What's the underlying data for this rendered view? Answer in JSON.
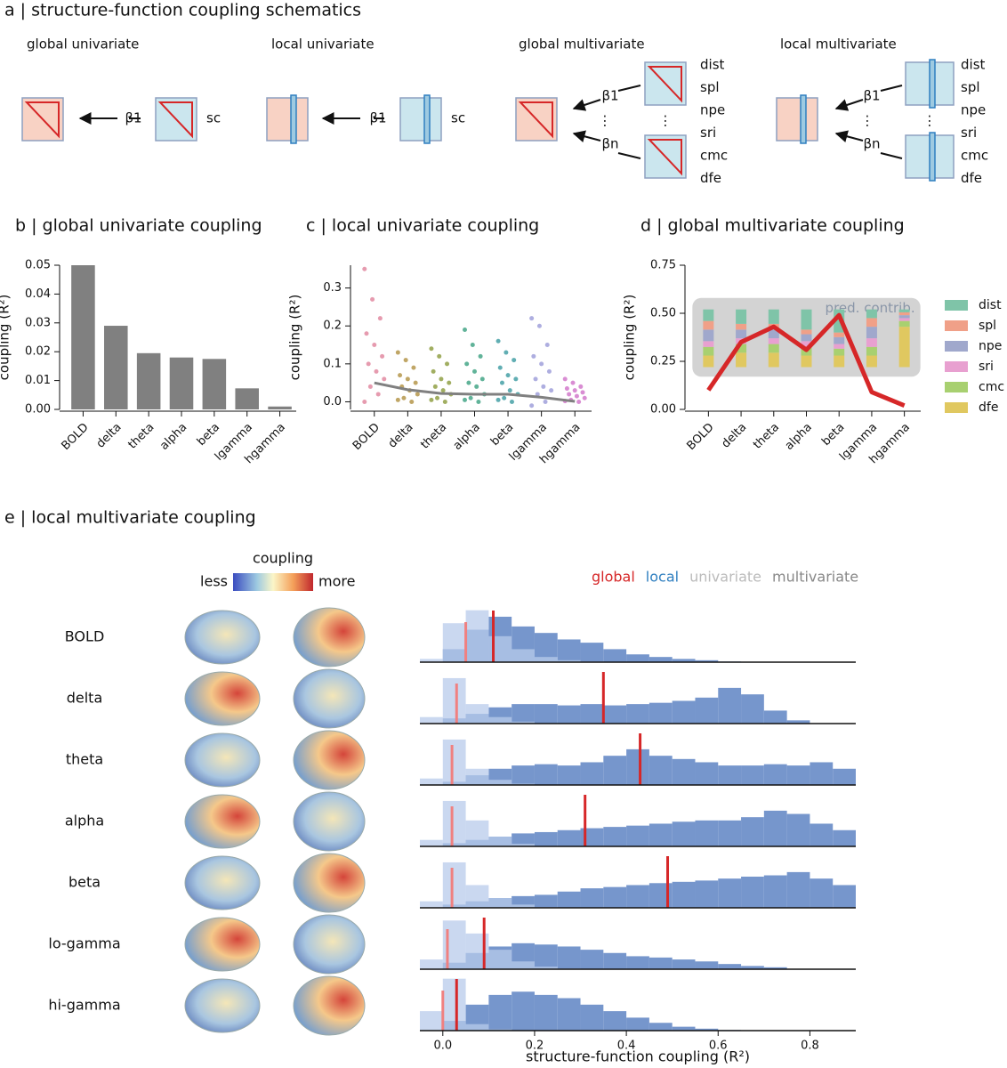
{
  "panel_a": {
    "title": "a | structure-function coupling schematics",
    "schemes": [
      "global univariate",
      "local univariate",
      "global multivariate",
      "local multivariate"
    ],
    "beta1": "β1",
    "betan": "βn",
    "sc": "sc",
    "dots": "⋮",
    "predictors": [
      "dist",
      "spl",
      "npe",
      "sri",
      "cmc",
      "dfe"
    ]
  },
  "chart_data": [
    {
      "type": "bar",
      "title": "b | global univariate coupling",
      "ylabel": "coupling (R²)",
      "categories": [
        "BOLD",
        "delta",
        "theta",
        "alpha",
        "beta",
        "lgamma",
        "hgamma"
      ],
      "values": [
        0.05,
        0.029,
        0.0195,
        0.018,
        0.0175,
        0.0073,
        0.001
      ],
      "color": "#808080",
      "ylim": [
        0,
        0.05
      ],
      "yticks": [
        {
          "value": 0,
          "label": "0.00"
        },
        0.01,
        0.02,
        0.03,
        0.04,
        0.05
      ]
    },
    {
      "type": "strip",
      "title": "c | local univariate coupling",
      "ylabel": "coupling (R²)",
      "categories": [
        "BOLD",
        "delta",
        "theta",
        "alpha",
        "beta",
        "lgamma",
        "hgamma"
      ],
      "colors": [
        "#e0829b",
        "#b09040",
        "#8a9a3a",
        "#3aa080",
        "#3a9aa0",
        "#9a9ad8",
        "#d070c8"
      ],
      "points": [
        [
          0.35,
          0.27,
          0.22,
          0.18,
          0.15,
          0.12,
          0.1,
          0.08,
          0.06,
          0.04,
          0.02,
          0.0
        ],
        [
          0.13,
          0.11,
          0.09,
          0.07,
          0.06,
          0.05,
          0.04,
          0.03,
          0.02,
          0.01,
          0.0,
          0.005
        ],
        [
          0.14,
          0.12,
          0.1,
          0.08,
          0.06,
          0.05,
          0.04,
          0.03,
          0.02,
          0.01,
          0.0,
          0.005
        ],
        [
          0.19,
          0.15,
          0.12,
          0.1,
          0.08,
          0.06,
          0.05,
          0.04,
          0.02,
          0.01,
          0.0,
          0.005
        ],
        [
          0.16,
          0.13,
          0.11,
          0.09,
          0.07,
          0.06,
          0.05,
          0.03,
          0.02,
          0.01,
          0.0,
          0.005
        ],
        [
          0.22,
          0.2,
          0.15,
          0.12,
          0.1,
          0.08,
          0.06,
          0.04,
          0.03,
          0.02,
          0.0,
          -0.01
        ],
        [
          0.06,
          0.05,
          0.04,
          0.035,
          0.03,
          0.025,
          0.02,
          0.015,
          0.01,
          0.005,
          0.0,
          0.002
        ]
      ],
      "trend": [
        0.05,
        0.032,
        0.022,
        0.02,
        0.02,
        0.012,
        0.001
      ],
      "trend_color": "#808080",
      "ylim": [
        -0.02,
        0.36
      ],
      "yticks": [
        {
          "value": 0,
          "label": "0.0"
        },
        0.1,
        0.2,
        0.3
      ]
    },
    {
      "type": "line",
      "title": "d | global multivariate coupling",
      "ylabel": "coupling (R²)",
      "categories": [
        "BOLD",
        "delta",
        "theta",
        "alpha",
        "beta",
        "lgamma",
        "hgamma"
      ],
      "values": [
        0.1,
        0.35,
        0.43,
        0.31,
        0.49,
        0.09,
        0.02
      ],
      "color": "#d62728",
      "annotation": "pred. contrib.",
      "contributions": [
        {
          "name": "dist",
          "color": "#7fc4a8",
          "values": [
            20,
            25,
            25,
            35,
            40,
            15,
            5
          ]
        },
        {
          "name": "spl",
          "color": "#f0a088",
          "values": [
            15,
            10,
            10,
            8,
            8,
            15,
            5
          ]
        },
        {
          "name": "npe",
          "color": "#a0a8cc",
          "values": [
            20,
            15,
            15,
            12,
            12,
            20,
            5
          ]
        },
        {
          "name": "sri",
          "color": "#e8a0d0",
          "values": [
            10,
            10,
            10,
            10,
            8,
            15,
            5
          ]
        },
        {
          "name": "cmc",
          "color": "#a8d070",
          "values": [
            15,
            15,
            15,
            15,
            12,
            15,
            10
          ]
        },
        {
          "name": "dfe",
          "color": "#e0c860",
          "values": [
            20,
            25,
            25,
            20,
            20,
            20,
            70
          ]
        }
      ],
      "ylim": [
        0,
        0.75
      ],
      "yticks": [
        {
          "value": 0,
          "label": "0.00"
        },
        0.25,
        {
          "value": 0.5,
          "label": "0.50"
        },
        0.75
      ]
    },
    {
      "type": "histogram",
      "title": "e | local multivariate coupling",
      "xlabel": "structure-function coupling (R²)",
      "colorbar": {
        "title": "coupling",
        "low": "less",
        "high": "more"
      },
      "legend": [
        {
          "label": "global",
          "color": "#d62728"
        },
        {
          "label": "local",
          "color": "#2f7fc0"
        },
        {
          "label": "univariate",
          "color": "#bbbbbb"
        },
        {
          "label": "multivariate",
          "color": "#888888"
        }
      ],
      "uni_color": "#b8cbeb",
      "multi_color": "#7696cc",
      "global_uni_color": "#f08080",
      "global_multi_color": "#d62728",
      "bins": [
        -0.05,
        0,
        0.05,
        0.1,
        0.15,
        0.2,
        0.25,
        0.3,
        0.35,
        0.4,
        0.45,
        0.5,
        0.55,
        0.6,
        0.65,
        0.7,
        0.75,
        0.8,
        0.85,
        0.9
      ],
      "rows": [
        {
          "name": "BOLD",
          "global_uni": 0.05,
          "global_multi": 0.11,
          "uni": [
            5,
            60,
            80,
            40,
            20,
            8,
            3,
            1,
            0,
            0,
            0,
            0,
            0,
            0,
            0,
            0,
            0,
            0,
            0
          ],
          "multi": [
            0,
            20,
            50,
            70,
            55,
            45,
            35,
            30,
            20,
            12,
            8,
            5,
            3,
            1,
            0,
            0,
            0,
            0,
            0
          ]
        },
        {
          "name": "delta",
          "global_uni": 0.03,
          "global_multi": 0.35,
          "uni": [
            10,
            70,
            30,
            10,
            3,
            0,
            0,
            0,
            0,
            0,
            0,
            0,
            0,
            0,
            0,
            0,
            0,
            0,
            0
          ],
          "multi": [
            0,
            8,
            15,
            25,
            30,
            30,
            28,
            30,
            28,
            30,
            32,
            35,
            40,
            55,
            45,
            20,
            5,
            0,
            0
          ]
        },
        {
          "name": "theta",
          "global_uni": 0.02,
          "global_multi": 0.43,
          "uni": [
            10,
            70,
            25,
            8,
            2,
            0,
            0,
            0,
            0,
            0,
            0,
            0,
            0,
            0,
            0,
            0,
            0,
            0,
            0
          ],
          "multi": [
            0,
            5,
            15,
            25,
            30,
            32,
            30,
            35,
            45,
            55,
            45,
            40,
            35,
            30,
            30,
            32,
            30,
            35,
            25
          ]
        },
        {
          "name": "alpha",
          "global_uni": 0.02,
          "global_multi": 0.31,
          "uni": [
            10,
            70,
            40,
            15,
            4,
            0,
            0,
            0,
            0,
            0,
            0,
            0,
            0,
            0,
            0,
            0,
            0,
            0,
            0
          ],
          "multi": [
            0,
            5,
            10,
            15,
            20,
            22,
            25,
            28,
            30,
            32,
            35,
            38,
            40,
            40,
            45,
            55,
            50,
            35,
            25
          ]
        },
        {
          "name": "beta",
          "global_uni": 0.02,
          "global_multi": 0.49,
          "uni": [
            10,
            70,
            35,
            15,
            5,
            1,
            0,
            0,
            0,
            0,
            0,
            0,
            0,
            0,
            0,
            0,
            0,
            0,
            0
          ],
          "multi": [
            0,
            5,
            10,
            15,
            18,
            20,
            25,
            30,
            32,
            35,
            38,
            40,
            42,
            45,
            48,
            50,
            55,
            45,
            35
          ]
        },
        {
          "name": "lo-gamma",
          "global_uni": 0.01,
          "global_multi": 0.09,
          "uni": [
            15,
            75,
            55,
            30,
            12,
            4,
            1,
            0,
            0,
            0,
            0,
            0,
            0,
            0,
            0,
            0,
            0,
            0,
            0
          ],
          "multi": [
            0,
            10,
            25,
            35,
            40,
            38,
            35,
            30,
            25,
            20,
            18,
            15,
            12,
            8,
            5,
            3,
            0,
            0,
            0
          ]
        },
        {
          "name": "hi-gamma",
          "global_uni": 0.0,
          "global_multi": 0.03,
          "uni": [
            30,
            80,
            10,
            2,
            0,
            0,
            0,
            0,
            0,
            0,
            0,
            0,
            0,
            0,
            0,
            0,
            0,
            0,
            0
          ],
          "multi": [
            0,
            15,
            40,
            55,
            60,
            55,
            50,
            40,
            30,
            20,
            12,
            6,
            3,
            1,
            0,
            0,
            0,
            0,
            0
          ]
        }
      ],
      "xlim": [
        -0.05,
        0.9
      ],
      "xticks": [
        {
          "value": 0,
          "label": "0.0"
        },
        0.2,
        0.4,
        0.6,
        0.8
      ]
    }
  ]
}
